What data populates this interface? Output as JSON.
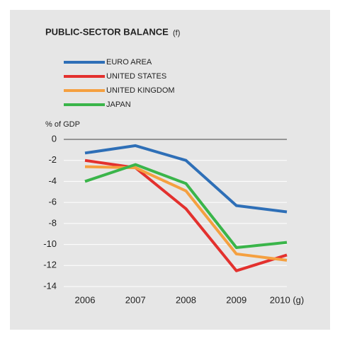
{
  "chart_data": {
    "type": "line",
    "title": "PUBLIC-SECTOR BALANCE",
    "title_note": "(f)",
    "y_label": "% of GDP",
    "categories": [
      "2006",
      "2007",
      "2008",
      "2009",
      "2010 (g)"
    ],
    "series": [
      {
        "name": "EURO AREA",
        "color": "#2e6fb7",
        "values": [
          -1.3,
          -0.6,
          -2.0,
          -6.3,
          -6.9
        ]
      },
      {
        "name": "UNITED STATES",
        "color": "#e3312e",
        "values": [
          -2.0,
          -2.7,
          -6.6,
          -12.5,
          -11.0
        ]
      },
      {
        "name": "UNITED KINGDOM",
        "color": "#f5a040",
        "values": [
          -2.6,
          -2.7,
          -4.9,
          -10.9,
          -11.5
        ]
      },
      {
        "name": "JAPAN",
        "color": "#3ab54a",
        "values": [
          -4.0,
          -2.4,
          -4.2,
          -10.3,
          -9.8
        ]
      }
    ],
    "ylim": [
      -14,
      0
    ],
    "yticks": [
      0,
      -2,
      -4,
      -6,
      -8,
      -10,
      -12,
      -14
    ],
    "grid": true
  }
}
